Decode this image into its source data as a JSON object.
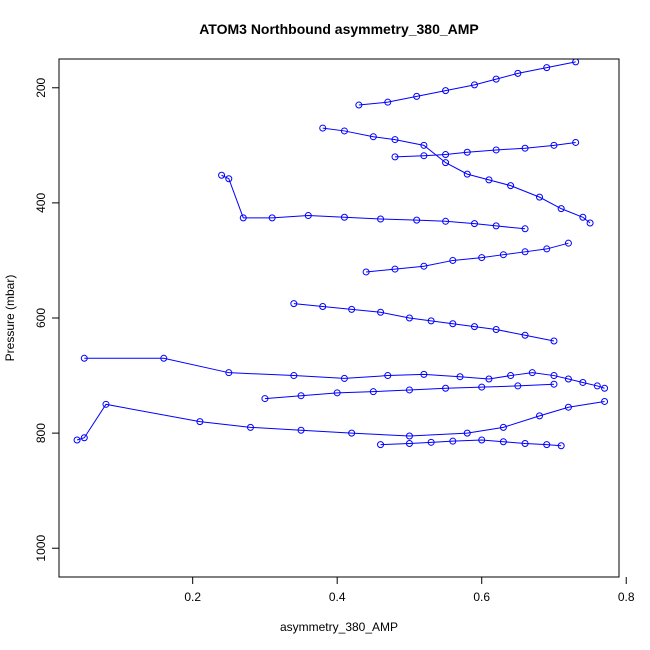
{
  "chart_data": {
    "type": "scatter",
    "title": "ATOM3 Northbound asymmetry_380_AMP",
    "xlabel": "asymmetry_380_AMP",
    "ylabel": "Pressure (mbar)",
    "xlim": [
      0.015,
      0.79
    ],
    "ylim": [
      1050,
      150
    ],
    "y_reversed": true,
    "x_ticks": [
      "0.2",
      "0.4",
      "0.6",
      "0.8"
    ],
    "y_ticks": [
      "200",
      "400",
      "600",
      "800",
      "1000"
    ],
    "grid": false,
    "legend": "none",
    "color": "#0000ff",
    "marker": "open-circle",
    "connected": true,
    "series": [
      {
        "x": [
          0.05,
          0.16,
          0.25,
          0.34,
          0.41,
          0.47,
          0.52,
          0.57,
          0.61,
          0.64,
          0.67,
          0.7,
          0.72,
          0.74,
          0.76,
          0.77
        ],
        "y": [
          670,
          670,
          695,
          700,
          705,
          700,
          698,
          702,
          706,
          700,
          695,
          700,
          706,
          712,
          718,
          722
        ]
      },
      {
        "x": [
          0.04,
          0.05,
          0.08,
          0.21,
          0.28,
          0.35,
          0.42,
          0.5,
          0.58,
          0.63,
          0.68,
          0.72,
          0.77
        ],
        "y": [
          812,
          808,
          750,
          780,
          790,
          795,
          800,
          805,
          800,
          790,
          770,
          755,
          745
        ]
      },
      {
        "x": [
          0.24,
          0.25,
          0.27,
          0.31,
          0.36,
          0.41,
          0.46,
          0.51,
          0.55,
          0.59,
          0.62,
          0.66
        ],
        "y": [
          352,
          358,
          426,
          426,
          422,
          425,
          428,
          430,
          432,
          436,
          440,
          445
        ]
      },
      {
        "x": [
          0.38,
          0.41,
          0.45,
          0.48,
          0.52,
          0.55,
          0.58,
          0.61,
          0.64,
          0.68,
          0.71,
          0.74,
          0.75
        ],
        "y": [
          270,
          275,
          285,
          290,
          300,
          330,
          350,
          360,
          370,
          390,
          410,
          425,
          435
        ]
      },
      {
        "x": [
          0.34,
          0.38,
          0.42,
          0.46,
          0.5,
          0.53,
          0.56,
          0.59,
          0.62,
          0.66,
          0.7
        ],
        "y": [
          575,
          580,
          585,
          590,
          600,
          605,
          610,
          615,
          620,
          630,
          640
        ]
      },
      {
        "x": [
          0.44,
          0.48,
          0.52,
          0.56,
          0.6,
          0.63,
          0.66,
          0.69,
          0.72
        ],
        "y": [
          520,
          515,
          510,
          500,
          495,
          490,
          485,
          480,
          470
        ]
      },
      {
        "x": [
          0.43,
          0.47,
          0.51,
          0.55,
          0.59,
          0.62,
          0.65,
          0.69,
          0.73
        ],
        "y": [
          230,
          225,
          215,
          205,
          195,
          185,
          175,
          165,
          155
        ]
      },
      {
        "x": [
          0.46,
          0.5,
          0.53,
          0.56,
          0.6,
          0.63,
          0.66,
          0.69,
          0.71
        ],
        "y": [
          820,
          818,
          816,
          814,
          812,
          815,
          818,
          820,
          822
        ]
      },
      {
        "x": [
          0.3,
          0.35,
          0.4,
          0.45,
          0.5,
          0.55,
          0.6,
          0.65,
          0.7
        ],
        "y": [
          740,
          735,
          730,
          728,
          725,
          722,
          720,
          718,
          715
        ]
      },
      {
        "x": [
          0.48,
          0.52,
          0.55,
          0.58,
          0.62,
          0.66,
          0.7,
          0.73
        ],
        "y": [
          320,
          318,
          316,
          312,
          308,
          305,
          300,
          295
        ]
      }
    ]
  }
}
